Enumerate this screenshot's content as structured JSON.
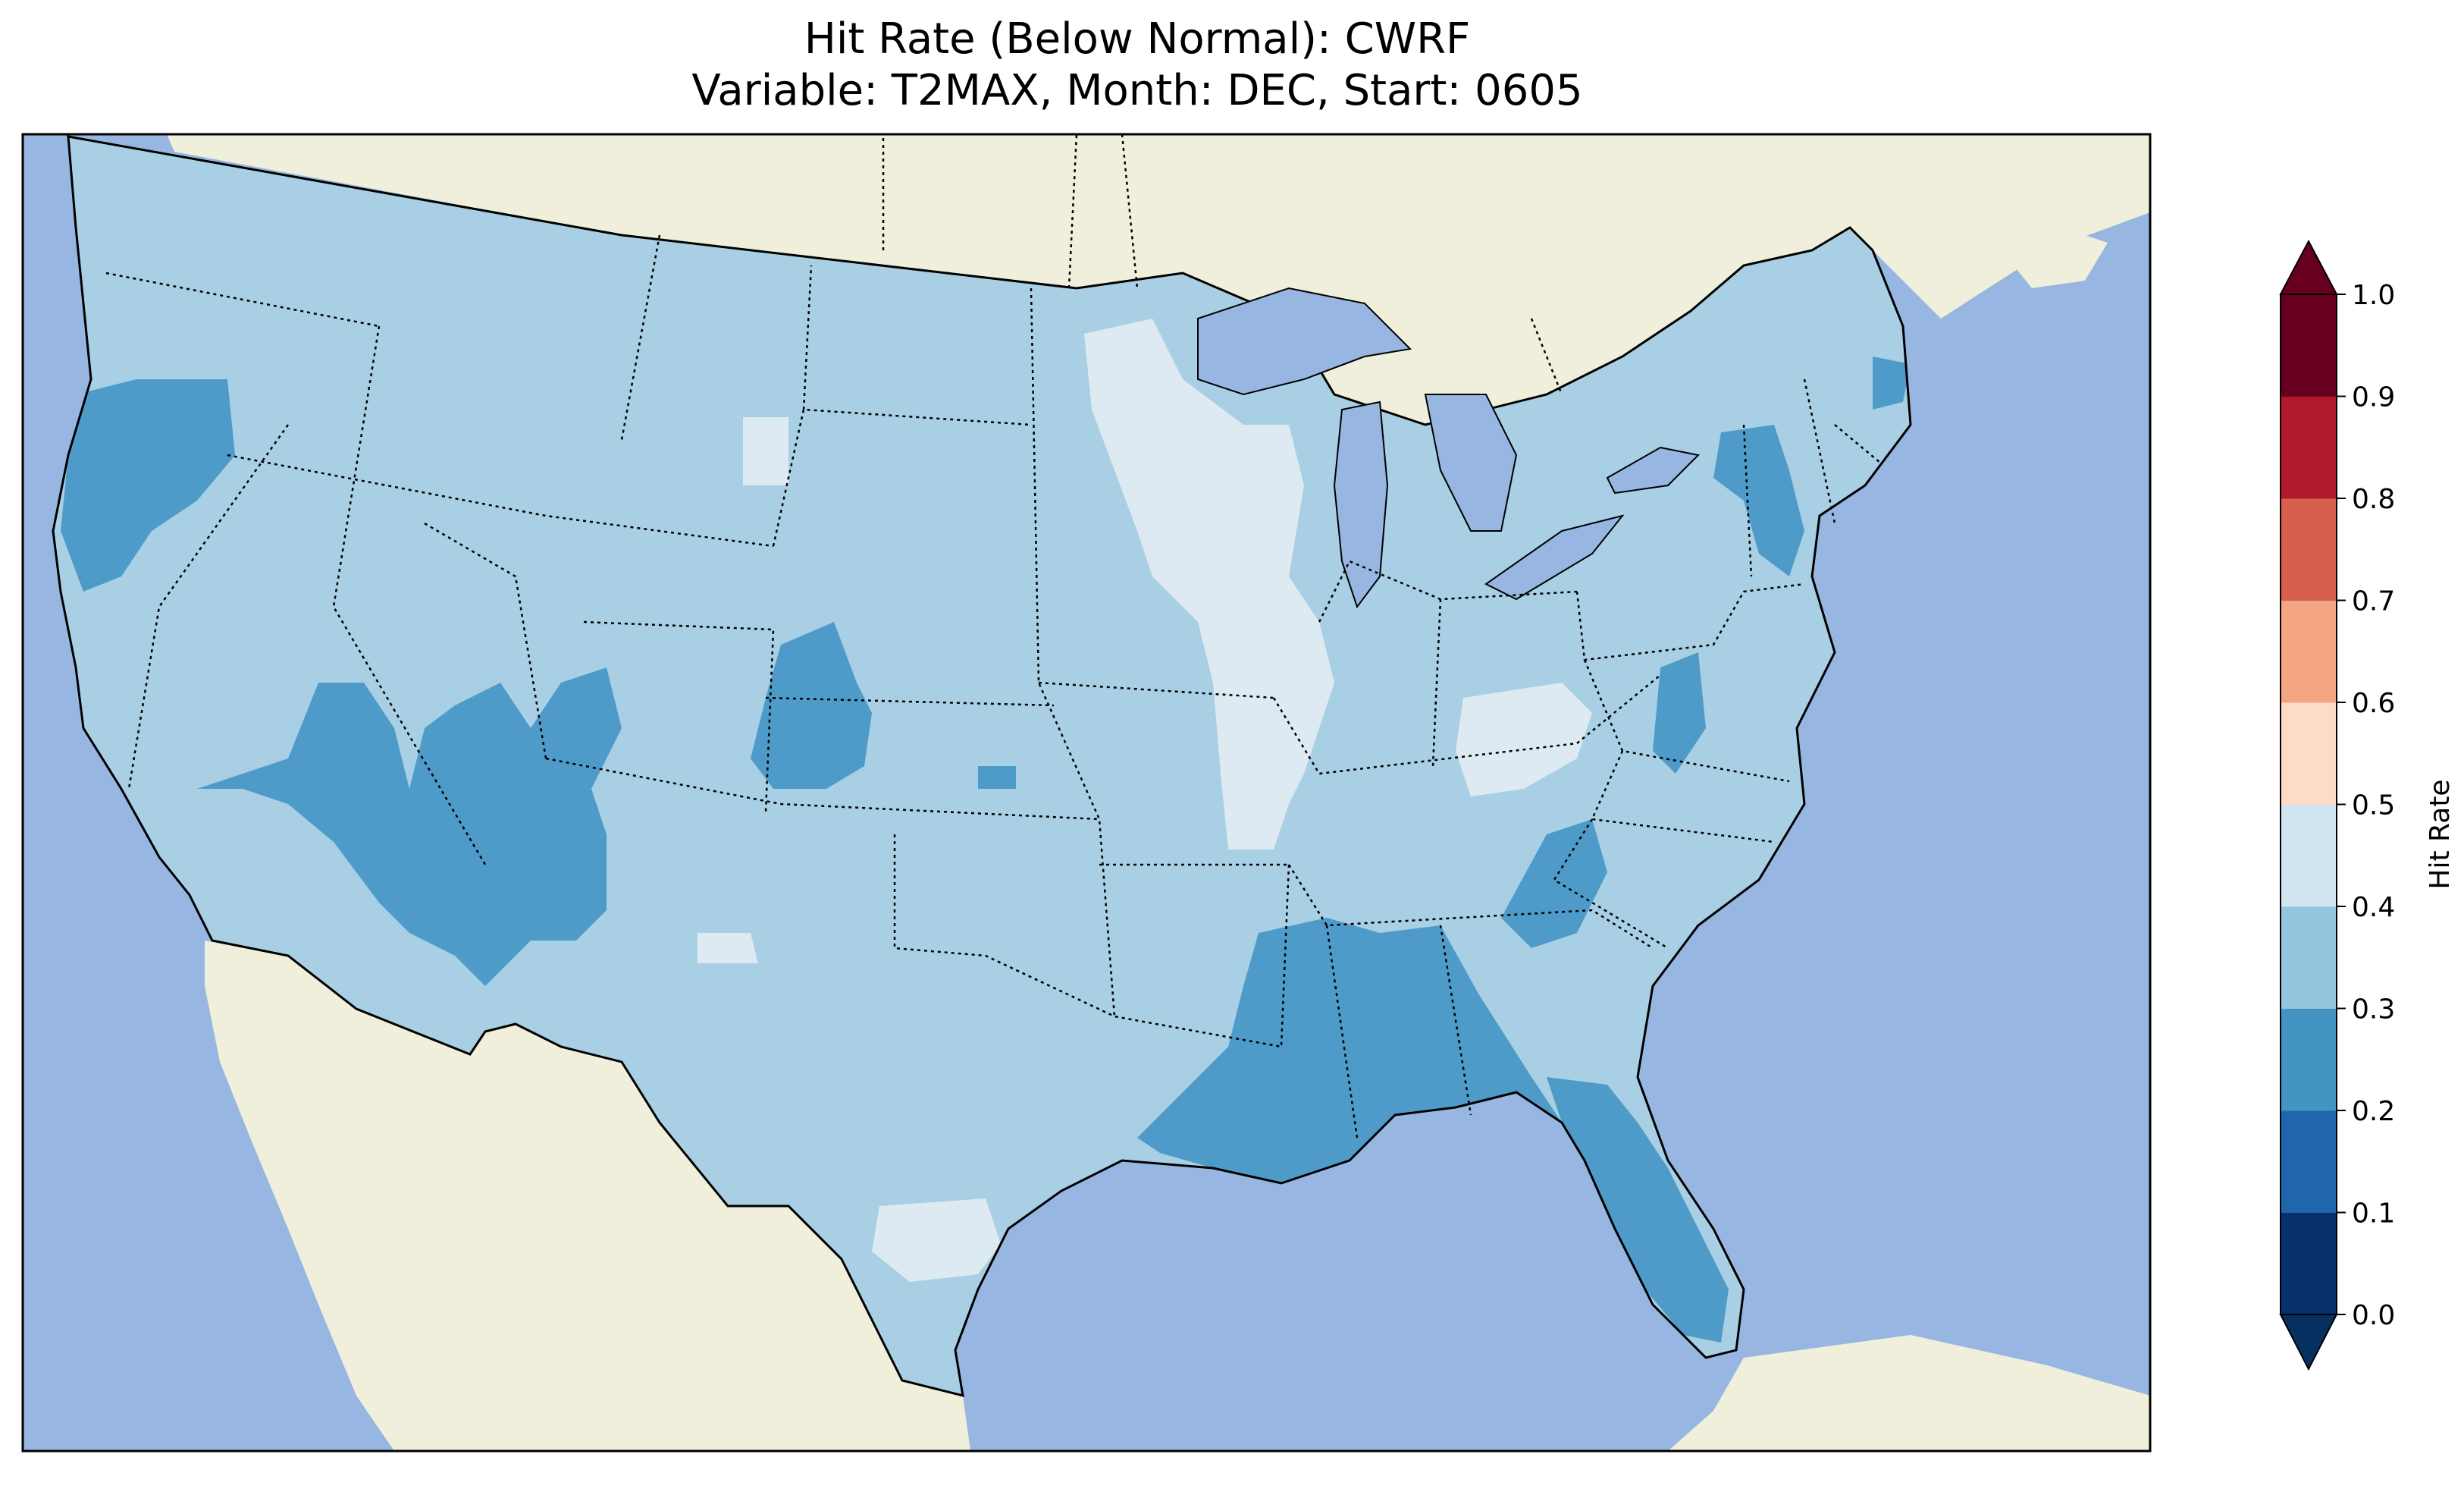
{
  "figure": {
    "title_line1": "Hit Rate (Below Normal): CWRF",
    "title_line2": "Variable: T2MAX, Month: DEC, Start: 0605"
  },
  "map": {
    "extent": "CONUS",
    "ocean_color": "#97b6e1",
    "land_color": "#efefdb",
    "lake_color": "#97b6e1"
  },
  "colorbar": {
    "label": "Hit Rate",
    "ticks": [
      "0.0",
      "0.1",
      "0.2",
      "0.3",
      "0.4",
      "0.5",
      "0.6",
      "0.7",
      "0.8",
      "0.9",
      "1.0"
    ],
    "levels": [
      0.0,
      0.1,
      0.2,
      0.3,
      0.4,
      0.5,
      0.6,
      0.7,
      0.8,
      0.9,
      1.0
    ],
    "colors": [
      "#08306b",
      "#2166ac",
      "#4393c3",
      "#92c5de",
      "#d1e5f0",
      "#fddbc7",
      "#f4a582",
      "#d6604d",
      "#b2182b",
      "#67001f"
    ],
    "under_color": "#053061",
    "over_color": "#67001f",
    "extend": "both"
  },
  "chart_data": {
    "type": "heatmap",
    "title": "Hit Rate (Below Normal): CWRF\nVariable: T2MAX, Month: DEC, Start: 0605",
    "value_range": [
      0.0,
      1.0
    ],
    "colorbar_label": "Hit Rate",
    "regions": [
      {
        "region": "Pacific Northwest / northern California coast",
        "band": "0.2-0.3"
      },
      {
        "region": "Nevada / Utah / Arizona interior",
        "band": "0.2-0.3"
      },
      {
        "region": "Colorado Front Range",
        "band": "0.2-0.3"
      },
      {
        "region": "Lower Mississippi / Louisiana / Alabama",
        "band": "0.2-0.3"
      },
      {
        "region": "Florida peninsula",
        "band": "0.2-0.3"
      },
      {
        "region": "New York / Pennsylvania east",
        "band": "0.2-0.3"
      },
      {
        "region": "Wisconsin / Illinois",
        "band": "0.4-0.5"
      },
      {
        "region": "South Texas",
        "band": "0.4-0.5"
      },
      {
        "region": "Kentucky / West Virginia",
        "band": "0.4-0.5"
      },
      {
        "region": "Most of CONUS",
        "band": "0.3-0.4"
      }
    ]
  }
}
